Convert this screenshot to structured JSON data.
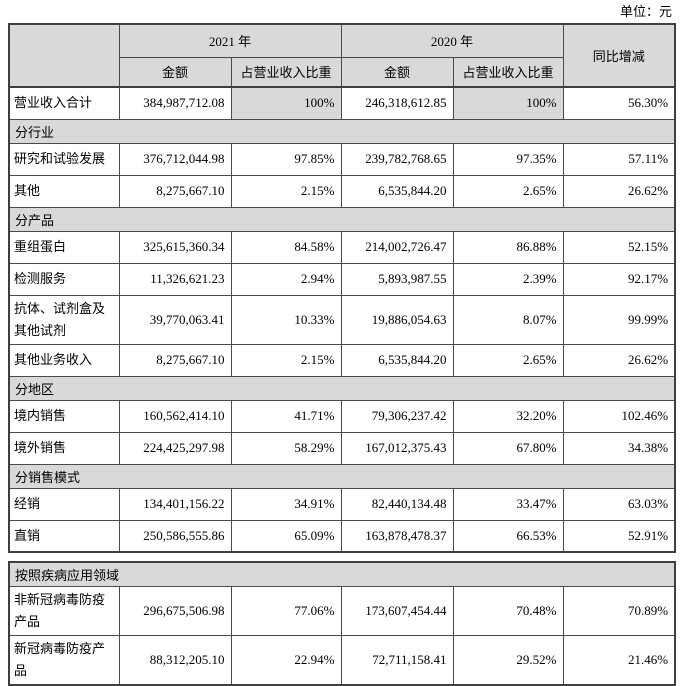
{
  "unit_label": "单位：元",
  "colors": {
    "header_bg": "#d9d9d9",
    "section_bg": "#d9d9d9",
    "border": "#4a4a4a",
    "text": "#000000"
  },
  "header": {
    "corner_label": "",
    "year_2021_label": "2021 年",
    "year_2020_label": "2020 年",
    "yoy_label": "同比增减",
    "sub_headers": [
      "金额",
      "占营业收入比重",
      "金额",
      "占营业收入比重"
    ]
  },
  "table1": {
    "rows": [
      {
        "type": "data",
        "label": "营业收入合计",
        "cells": [
          "384,987,712.08",
          "100%",
          "246,318,612.85",
          "100%",
          "56.30%"
        ],
        "shaded_cols": [
          1,
          3
        ]
      },
      {
        "type": "section",
        "label": "分行业"
      },
      {
        "type": "data",
        "label": "研究和试验发展",
        "cells": [
          "376,712,044.98",
          "97.85%",
          "239,782,768.65",
          "97.35%",
          "57.11%"
        ]
      },
      {
        "type": "data",
        "label": "其他",
        "cells": [
          "8,275,667.10",
          "2.15%",
          "6,535,844.20",
          "2.65%",
          "26.62%"
        ]
      },
      {
        "type": "section",
        "label": "分产品"
      },
      {
        "type": "data",
        "label": "重组蛋白",
        "cells": [
          "325,615,360.34",
          "84.58%",
          "214,002,726.47",
          "86.88%",
          "52.15%"
        ]
      },
      {
        "type": "data",
        "label": "检测服务",
        "cells": [
          "11,326,621.23",
          "2.94%",
          "5,893,987.55",
          "2.39%",
          "92.17%"
        ]
      },
      {
        "type": "data",
        "label": "抗体、试剂盒及其他试剂",
        "cells": [
          "39,770,063.41",
          "10.33%",
          "19,886,054.63",
          "8.07%",
          "99.99%"
        ]
      },
      {
        "type": "data",
        "label": "其他业务收入",
        "cells": [
          "8,275,667.10",
          "2.15%",
          "6,535,844.20",
          "2.65%",
          "26.62%"
        ]
      },
      {
        "type": "section",
        "label": "分地区"
      },
      {
        "type": "data",
        "label": "境内销售",
        "cells": [
          "160,562,414.10",
          "41.71%",
          "79,306,237.42",
          "32.20%",
          "102.46%"
        ]
      },
      {
        "type": "data",
        "label": "境外销售",
        "cells": [
          "224,425,297.98",
          "58.29%",
          "167,012,375.43",
          "67.80%",
          "34.38%"
        ]
      },
      {
        "type": "section",
        "label": "分销售模式"
      },
      {
        "type": "data",
        "label": "经销",
        "cells": [
          "134,401,156.22",
          "34.91%",
          "82,440,134.48",
          "33.47%",
          "63.03%"
        ]
      },
      {
        "type": "data",
        "label": "直销",
        "cells": [
          "250,586,555.86",
          "65.09%",
          "163,878,478.37",
          "66.53%",
          "52.91%"
        ]
      }
    ]
  },
  "table2": {
    "rows": [
      {
        "type": "section",
        "label": "按照疾病应用领域"
      },
      {
        "type": "data",
        "label": "非新冠病毒防疫产品",
        "cells": [
          "296,675,506.98",
          "77.06%",
          "173,607,454.44",
          "70.48%",
          "70.89%"
        ]
      },
      {
        "type": "data",
        "label": "新冠病毒防疫产品",
        "cells": [
          "88,312,205.10",
          "22.94%",
          "72,711,158.41",
          "29.52%",
          "21.46%"
        ]
      }
    ]
  }
}
